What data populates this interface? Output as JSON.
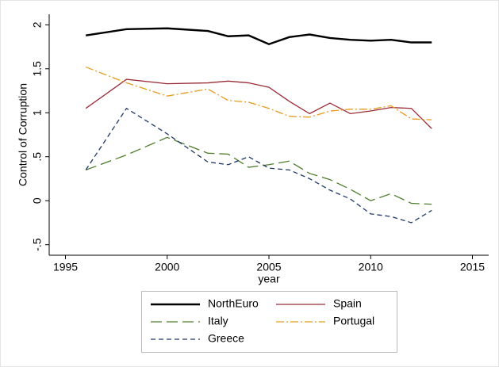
{
  "chart_data": {
    "type": "line",
    "x_label": "year",
    "y_label": "Control of Corruption",
    "x": [
      1996,
      1998,
      2000,
      2002,
      2003,
      2004,
      2005,
      2006,
      2007,
      2008,
      2009,
      2010,
      2011,
      2012,
      2013
    ],
    "series": [
      {
        "name": "NorthEuro",
        "color": "#000000",
        "values": [
          1.88,
          1.95,
          1.96,
          1.93,
          1.87,
          1.88,
          1.78,
          1.86,
          1.89,
          1.85,
          1.83,
          1.82,
          1.83,
          1.8,
          1.8
        ]
      },
      {
        "name": "Spain",
        "color": "#9a2b36",
        "values": [
          1.05,
          1.38,
          1.33,
          1.34,
          1.36,
          1.34,
          1.29,
          1.13,
          0.99,
          1.11,
          0.99,
          1.02,
          1.06,
          1.05,
          0.82
        ]
      },
      {
        "name": "Italy",
        "color": "#4e7d2c",
        "values": [
          0.35,
          0.52,
          0.72,
          0.54,
          0.53,
          0.38,
          0.41,
          0.45,
          0.31,
          0.24,
          0.13,
          0.0,
          0.08,
          -0.03,
          -0.04
        ]
      },
      {
        "name": "Portugal",
        "color": "#e89a1c",
        "values": [
          1.52,
          1.34,
          1.19,
          1.27,
          1.14,
          1.12,
          1.05,
          0.96,
          0.95,
          1.02,
          1.04,
          1.04,
          1.08,
          0.93,
          0.92
        ]
      },
      {
        "name": "Greece",
        "color": "#1e3763",
        "values": [
          0.35,
          1.05,
          0.76,
          0.44,
          0.41,
          0.5,
          0.37,
          0.35,
          0.25,
          0.12,
          0.02,
          -0.15,
          -0.18,
          -0.25,
          -0.11
        ]
      }
    ],
    "xlim": [
      1994.2,
      2015.8
    ],
    "xticks": [
      1995,
      2000,
      2005,
      2010,
      2015
    ],
    "ylim": [
      -0.62,
      2.12
    ],
    "yticks": [
      {
        "value": -0.5,
        "label": "-.5"
      },
      0,
      {
        "value": 0.5,
        "label": ".5"
      },
      1,
      1.5,
      2
    ]
  }
}
